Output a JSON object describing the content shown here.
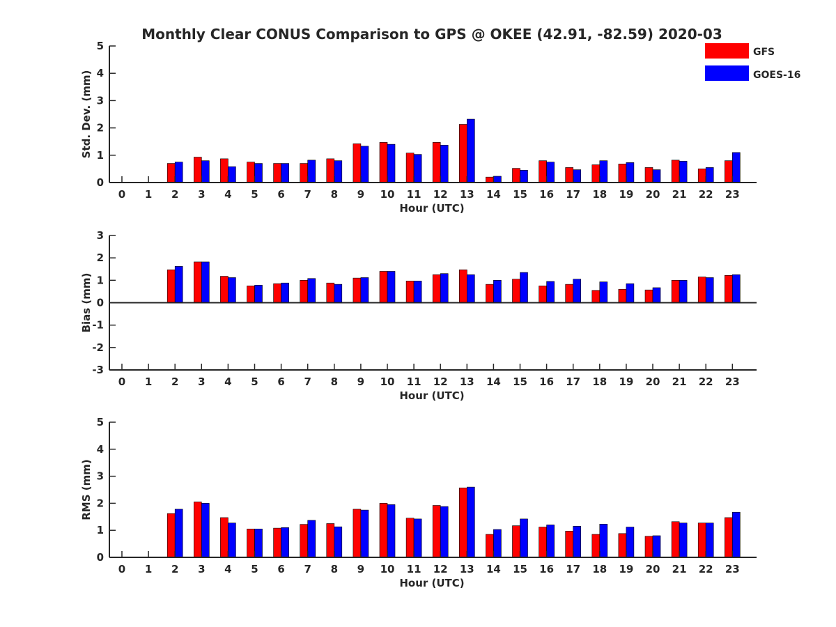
{
  "title": "Monthly Clear CONUS Comparison to GPS @ OKEE (42.91, -82.59) 2020-03",
  "legend": {
    "placement": "top-right",
    "entries": [
      {
        "name": "GFS",
        "color": "#ff0000"
      },
      {
        "name": "GOES-16",
        "color": "#0000ff"
      }
    ]
  },
  "chart_data": [
    {
      "type": "bar",
      "xlabel": "Hour (UTC)",
      "ylabel": "Std. Dev. (mm)",
      "ylim": [
        0,
        5
      ],
      "yticks": [
        0,
        1,
        2,
        3,
        4,
        5
      ],
      "categories": [
        "0",
        "1",
        "2",
        "3",
        "4",
        "5",
        "6",
        "7",
        "8",
        "9",
        "10",
        "11",
        "12",
        "13",
        "14",
        "15",
        "16",
        "17",
        "18",
        "19",
        "20",
        "21",
        "22",
        "23"
      ],
      "series": [
        {
          "name": "GFS",
          "color": "#ff0000",
          "values": [
            null,
            null,
            0.7,
            0.93,
            0.87,
            0.75,
            0.7,
            0.7,
            0.87,
            1.42,
            1.47,
            1.08,
            1.47,
            2.13,
            0.2,
            0.52,
            0.8,
            0.55,
            0.65,
            0.68,
            0.55,
            0.82,
            0.5,
            0.8
          ]
        },
        {
          "name": "GOES-16",
          "color": "#0000ff",
          "values": [
            null,
            null,
            0.75,
            0.8,
            0.58,
            0.7,
            0.7,
            0.82,
            0.8,
            1.33,
            1.4,
            1.03,
            1.37,
            2.32,
            0.23,
            0.45,
            0.75,
            0.47,
            0.8,
            0.73,
            0.47,
            0.78,
            0.55,
            1.1
          ]
        }
      ]
    },
    {
      "type": "bar",
      "xlabel": "Hour (UTC)",
      "ylabel": "Bias (mm)",
      "ylim": [
        -3,
        3
      ],
      "yticks": [
        -3,
        -2,
        -1,
        0,
        1,
        2,
        3
      ],
      "categories": [
        "0",
        "1",
        "2",
        "3",
        "4",
        "5",
        "6",
        "7",
        "8",
        "9",
        "10",
        "11",
        "12",
        "13",
        "14",
        "15",
        "16",
        "17",
        "18",
        "19",
        "20",
        "21",
        "22",
        "23"
      ],
      "series": [
        {
          "name": "GFS",
          "color": "#ff0000",
          "values": [
            null,
            null,
            1.47,
            1.82,
            1.18,
            0.75,
            0.85,
            1.0,
            0.88,
            1.1,
            1.4,
            0.97,
            1.25,
            1.47,
            0.82,
            1.05,
            0.75,
            0.82,
            0.55,
            0.6,
            0.57,
            1.0,
            1.15,
            1.22
          ]
        },
        {
          "name": "GOES-16",
          "color": "#0000ff",
          "values": [
            null,
            null,
            1.62,
            1.82,
            1.12,
            0.78,
            0.88,
            1.08,
            0.82,
            1.12,
            1.4,
            0.97,
            1.3,
            1.25,
            1.0,
            1.35,
            0.95,
            1.05,
            0.93,
            0.85,
            0.67,
            1.0,
            1.12,
            1.25
          ]
        }
      ]
    },
    {
      "type": "bar",
      "xlabel": "Hour (UTC)",
      "ylabel": "RMS (mm)",
      "ylim": [
        0,
        5
      ],
      "yticks": [
        0,
        1,
        2,
        3,
        4,
        5
      ],
      "categories": [
        "0",
        "1",
        "2",
        "3",
        "4",
        "5",
        "6",
        "7",
        "8",
        "9",
        "10",
        "11",
        "12",
        "13",
        "14",
        "15",
        "16",
        "17",
        "18",
        "19",
        "20",
        "21",
        "22",
        "23"
      ],
      "series": [
        {
          "name": "GFS",
          "color": "#ff0000",
          "values": [
            null,
            null,
            1.62,
            2.05,
            1.47,
            1.05,
            1.08,
            1.22,
            1.25,
            1.78,
            2.0,
            1.45,
            1.92,
            2.57,
            0.85,
            1.17,
            1.12,
            0.97,
            0.85,
            0.88,
            0.78,
            1.32,
            1.27,
            1.47
          ]
        },
        {
          "name": "GOES-16",
          "color": "#0000ff",
          "values": [
            null,
            null,
            1.78,
            2.0,
            1.27,
            1.05,
            1.1,
            1.37,
            1.13,
            1.75,
            1.95,
            1.42,
            1.88,
            2.6,
            1.03,
            1.42,
            1.2,
            1.15,
            1.23,
            1.12,
            0.8,
            1.27,
            1.27,
            1.67
          ]
        }
      ]
    }
  ]
}
